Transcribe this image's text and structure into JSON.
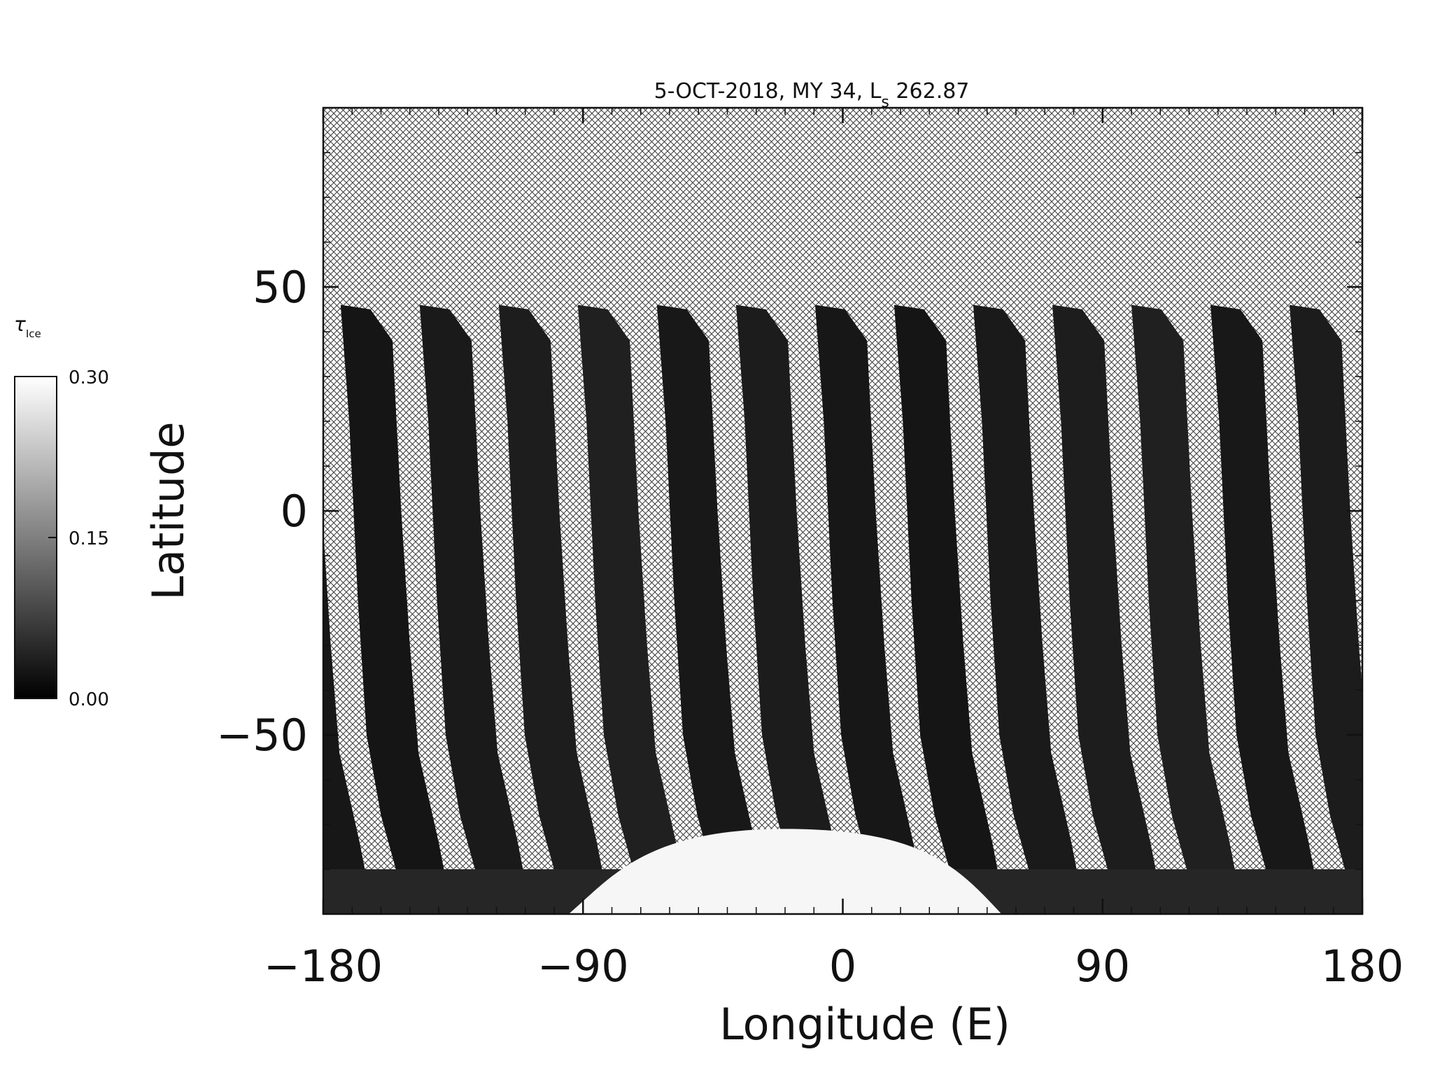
{
  "chart_data": {
    "type": "heatmap",
    "title": "5-OCT-2018, MY 34,  L",
    "title_sub": "s",
    "title_tail": " 262.87",
    "xlabel": "Longitude (E)",
    "ylabel": "Latitude",
    "xlim": [
      -180,
      180
    ],
    "ylim": [
      -90,
      90
    ],
    "x_ticks": [
      -180,
      -90,
      0,
      90,
      180
    ],
    "x_tick_labels": [
      "−180",
      "−90",
      "0",
      "90",
      "180"
    ],
    "y_ticks": [
      -50,
      0,
      50
    ],
    "y_tick_labels": [
      "−50",
      "0",
      "50"
    ],
    "colorbar": {
      "label": "τ",
      "label_sub": "Ice",
      "range": [
        0.0,
        0.3
      ],
      "ticks": [
        0.0,
        0.15,
        0.3
      ],
      "tick_labels": [
        "0.00",
        "0.15",
        "0.30"
      ],
      "colormap": "grayscale"
    },
    "no_data_fill": "crosshatch",
    "swaths": {
      "count": 14,
      "start_lon_top": -174,
      "spacing_deg": 27.4,
      "top_lat": 46,
      "width_deg": 23
    },
    "polar_cap": {
      "lon_range": [
        -95,
        55
      ],
      "peak_lat": -71,
      "value": 0.3
    },
    "grid": false
  }
}
